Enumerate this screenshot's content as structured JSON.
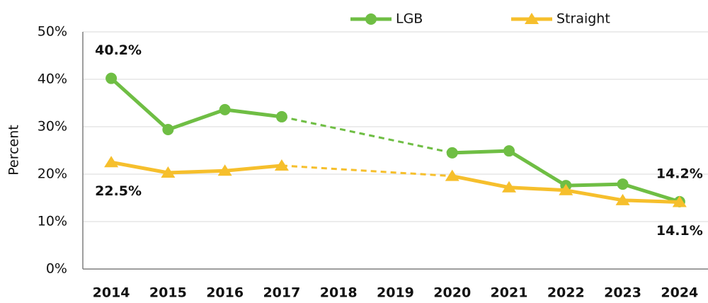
{
  "chart_data": {
    "type": "line",
    "categories": [
      "2014",
      "2015",
      "2016",
      "2017",
      "2018",
      "2019",
      "2020",
      "2021",
      "2022",
      "2023",
      "2024"
    ],
    "ylabel": "Percent",
    "ylim": [
      0,
      50
    ],
    "yticks": [
      {
        "value": 0,
        "label": "0%"
      },
      {
        "value": 10,
        "label": "10%"
      },
      {
        "value": 20,
        "label": "20%"
      },
      {
        "value": 30,
        "label": "30%"
      },
      {
        "value": 40,
        "label": "40%"
      },
      {
        "value": 50,
        "label": "50%"
      }
    ],
    "grid": true,
    "legend": "top",
    "series": [
      {
        "name": "LGB",
        "color": "#6fbe44",
        "marker": "circle",
        "values": [
          40.2,
          29.4,
          33.6,
          32.1,
          null,
          null,
          24.5,
          24.9,
          17.6,
          17.9,
          14.2
        ],
        "value_labels": [
          "40.2%",
          null,
          null,
          null,
          null,
          null,
          null,
          null,
          null,
          null,
          "14.2%"
        ]
      },
      {
        "name": "Straight",
        "color": "#f6bf2c",
        "marker": "triangle",
        "values": [
          22.5,
          20.3,
          20.7,
          21.8,
          null,
          null,
          19.6,
          17.2,
          16.6,
          14.5,
          14.1
        ],
        "value_labels": [
          "22.5%",
          null,
          null,
          null,
          null,
          null,
          null,
          null,
          null,
          null,
          "14.1%"
        ]
      }
    ]
  }
}
